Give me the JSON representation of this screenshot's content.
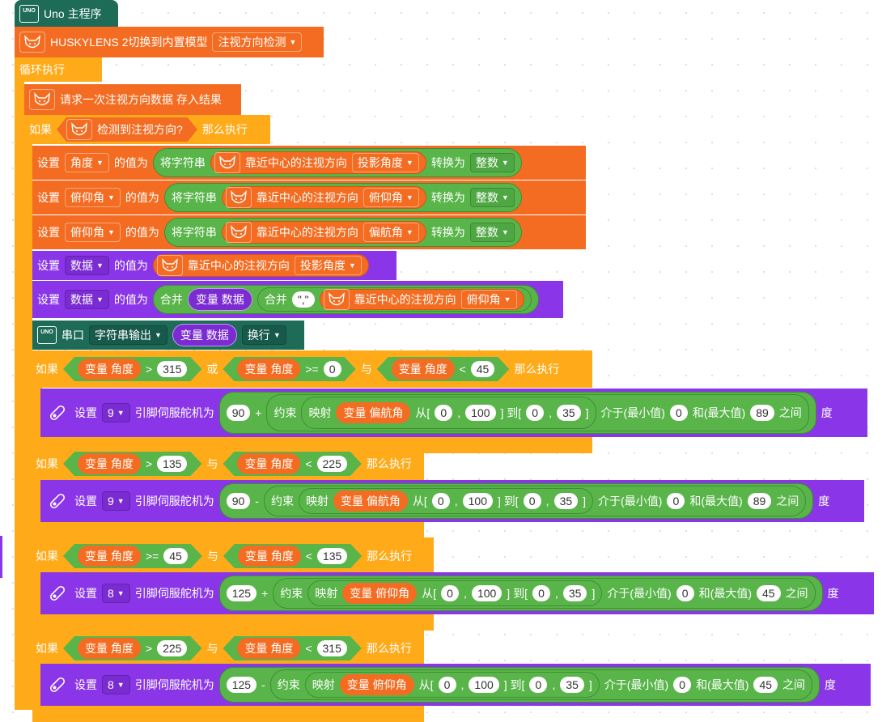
{
  "header": {
    "title": "Uno 主程序"
  },
  "setup": {
    "text": "HUSKYLENS 2切换到内置模型",
    "model": "注视方向检测"
  },
  "loop": {
    "label": "循环执行"
  },
  "request": {
    "text": "请求一次注视方向数据 存入结果"
  },
  "if_main": {
    "if": "如果",
    "cond": "检测到注视方向?",
    "then": "那么执行"
  },
  "words": {
    "set": "设置",
    "value_of": "的值为",
    "to_string": "将字符串",
    "convert": "转换为",
    "near_center": "靠近中心的注视方向",
    "merge": "合并",
    "serial": "串口",
    "if": "如果",
    "then": "那么执行",
    "or": "或",
    "and": "与",
    "pin_servo": "引脚伺服舵机为",
    "constrain": "约束",
    "map": "映射",
    "from": "从[",
    "to": "] 到[",
    "close": "]",
    "comma": ",",
    "between_min": "介于(最小值)",
    "and_max": "和(最大值)",
    "between_end": "之间",
    "degree": "度"
  },
  "assign": [
    {
      "var": "角度",
      "attr": "投影角度",
      "type": "整数"
    },
    {
      "var": "俯仰角",
      "attr": "俯仰角",
      "type": "整数"
    },
    {
      "var": "俯仰角",
      "attr": "偏航角",
      "type": "整数"
    }
  ],
  "data_assign": {
    "var": "数据",
    "attr": "投影角度"
  },
  "data_merge": {
    "var": "数据",
    "varname": "变量 数据",
    "sep": "\",\"",
    "attr": "俯仰角"
  },
  "serial": {
    "mode": "字符串输出",
    "var": "变量 数据",
    "end": "换行"
  },
  "conds": [
    {
      "a": "变量 角度",
      "op1": ">",
      "n1": "315",
      "link": "或",
      "b": "变量 角度",
      "op2": ">=",
      "n2": "0",
      "link2": "与",
      "c": "变量 角度",
      "op3": "<",
      "n3": "45"
    },
    {
      "a": "变量 角度",
      "op1": ">",
      "n1": "135",
      "link": "与",
      "b": "变量 角度",
      "op2": "<",
      "n2": "225"
    },
    {
      "a": "变量 角度",
      "op1": ">=",
      "n1": "45",
      "link": "与",
      "b": "变量 角度",
      "op2": "<",
      "n2": "135"
    },
    {
      "a": "变量 角度",
      "op1": ">",
      "n1": "225",
      "link": "与",
      "b": "变量 角度",
      "op2": "<",
      "n2": "315"
    }
  ],
  "servos": [
    {
      "pin": "9",
      "base": "90",
      "op": "+",
      "var": "变量 偏航角",
      "f0": "0",
      "f1": "100",
      "t0": "0",
      "t1": "35",
      "min": "0",
      "max": "89"
    },
    {
      "pin": "9",
      "base": "90",
      "op": "-",
      "var": "变量 偏航角",
      "f0": "0",
      "f1": "100",
      "t0": "0",
      "t1": "35",
      "min": "0",
      "max": "89"
    },
    {
      "pin": "8",
      "base": "125",
      "op": "+",
      "var": "变量 俯仰角",
      "f0": "0",
      "f1": "100",
      "t0": "0",
      "t1": "35",
      "min": "0",
      "max": "45"
    },
    {
      "pin": "8",
      "base": "125",
      "op": "-",
      "var": "变量 俯仰角",
      "f0": "0",
      "f1": "100",
      "t0": "0",
      "t1": "35",
      "min": "0",
      "max": "45"
    }
  ],
  "icons": {
    "board": "uno-board-icon",
    "camera": "huskylens-icon",
    "servo": "servo-icon",
    "dropdown": "caret-down-icon"
  },
  "colors": {
    "event": "#1e6b58",
    "control": "#ffab19",
    "sensor": "#f36c21",
    "variable": "#8a36e8",
    "operator": "#59b54a"
  }
}
